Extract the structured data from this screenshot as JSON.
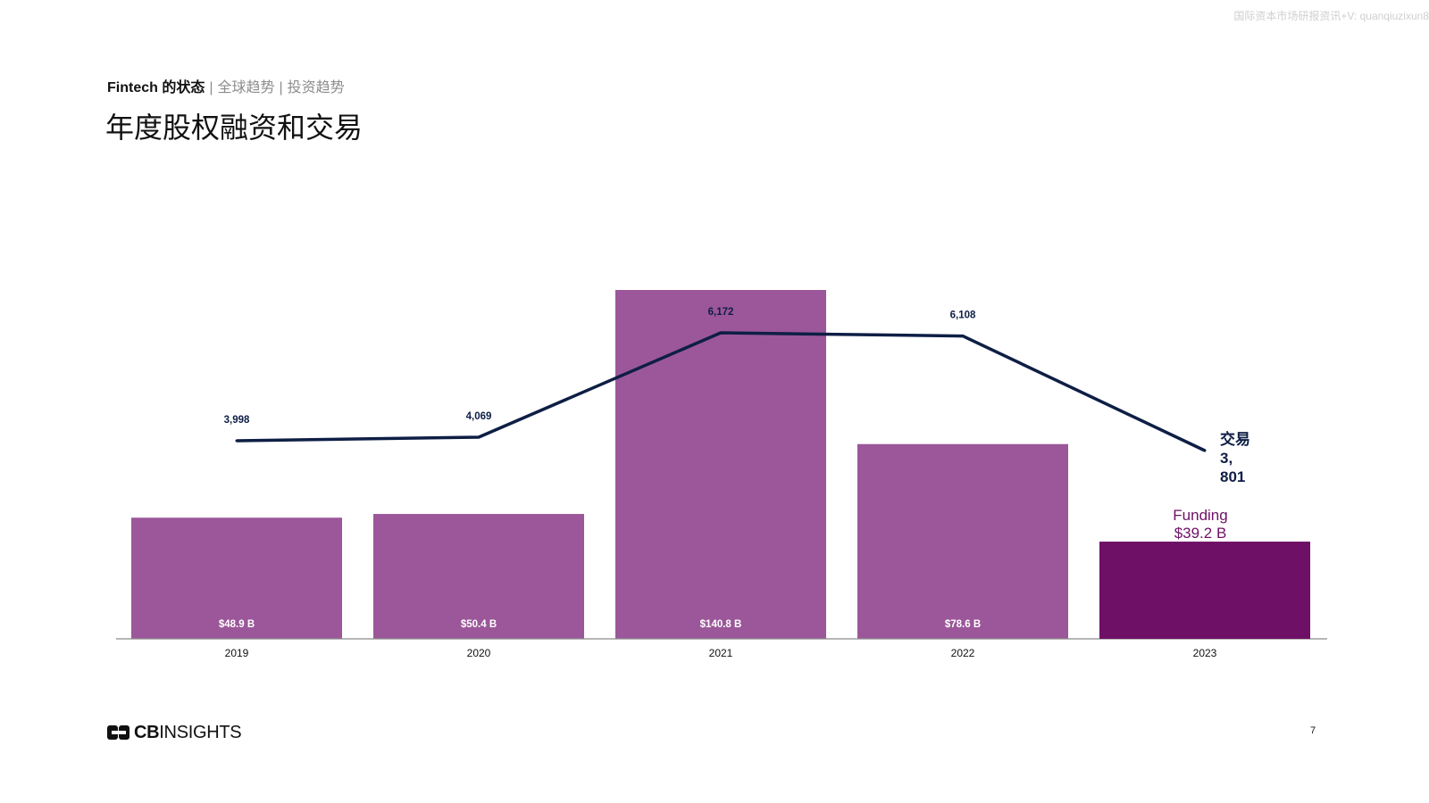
{
  "watermark": "国际资本市场研报资讯+V: quanqiuzixun8",
  "header": {
    "breadcrumb_main": "Fintech 的状态",
    "breadcrumb_items": [
      "全球趋势",
      "投资趋势"
    ],
    "title": "年度股权融资和交易"
  },
  "chart_data": {
    "type": "bar",
    "categories": [
      "2019",
      "2020",
      "2021",
      "2022",
      "2023"
    ],
    "series": [
      {
        "type": "bar",
        "values": [
          48.9,
          50.4,
          140.8,
          78.6,
          39.2
        ],
        "labels": [
          "$48.9 B",
          "$50.4 B",
          "$140.8 B",
          "$78.6 B",
          ""
        ],
        "color": "#9b5799",
        "highlight_color": "#6e1066"
      },
      {
        "type": "line",
        "values": [
          3998,
          4069,
          6172,
          6108,
          3801
        ],
        "labels": [
          "3,998",
          "4,069",
          "6,172",
          "6,108",
          ""
        ],
        "color": "#0e1e45"
      }
    ],
    "annotations": {
      "deals_label": [
        "交易",
        "3,",
        "801"
      ],
      "funding_label": [
        "Funding",
        "$39.2 B"
      ]
    },
    "ylim_funding": [
      0,
      140.8
    ],
    "ylim_deals": [
      0,
      7000
    ],
    "grid": false,
    "title": "",
    "xlabel": "",
    "ylabel": ""
  },
  "footer": {
    "logo_cb": "CB",
    "logo_insights": "INSIGHTS",
    "page_number": "7"
  },
  "colors": {
    "bar": "#9b5799",
    "bar_highlight": "#6e1066",
    "line": "#0e1e45"
  }
}
